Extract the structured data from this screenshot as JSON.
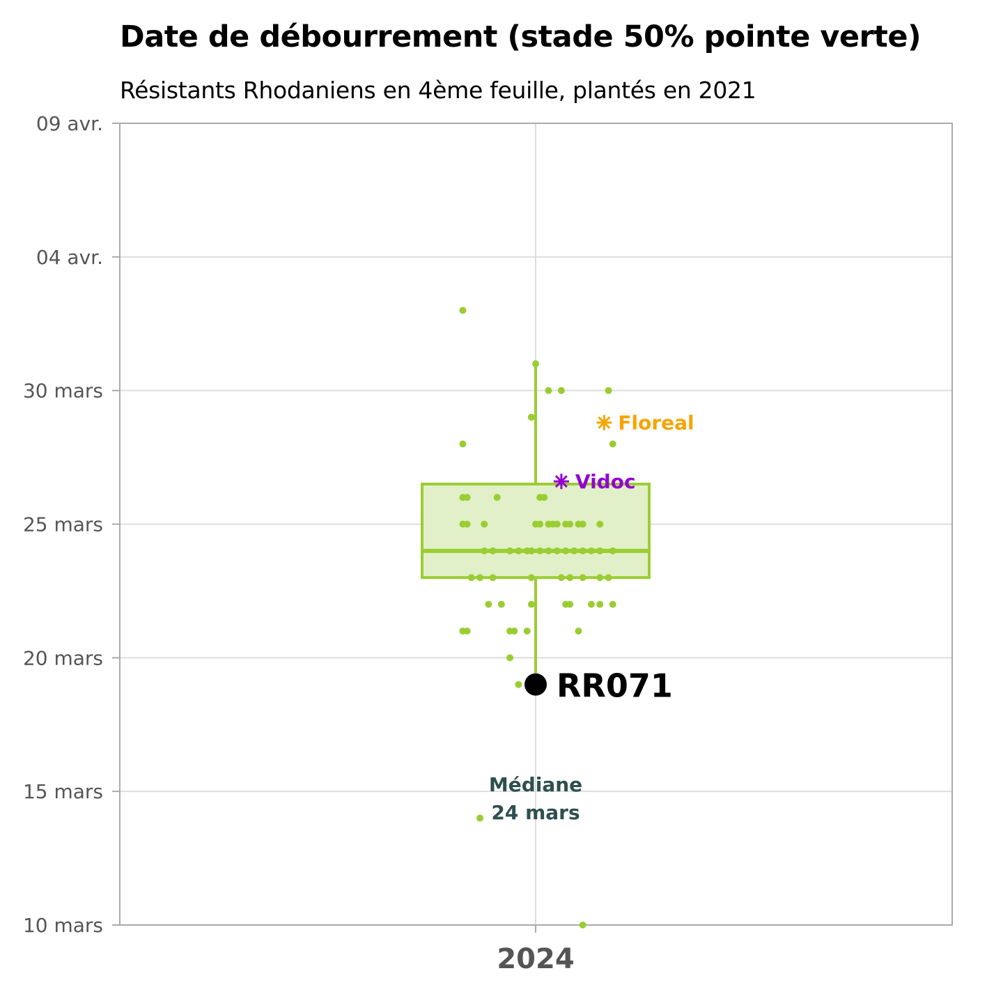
{
  "chart_data": {
    "type": "box",
    "title": "Date de débourrement (stade 50% pointe verte)",
    "subtitle": "Résistants Rhodaniens en 4ème feuille, plantés en 2021",
    "categories": [
      "2024"
    ],
    "y_axis": {
      "range_day_of_march": [
        10,
        40
      ],
      "ticks": [
        {
          "value": 10,
          "label": "10 mars"
        },
        {
          "value": 15,
          "label": "15 mars"
        },
        {
          "value": 20,
          "label": "20 mars"
        },
        {
          "value": 25,
          "label": "25 mars"
        },
        {
          "value": 30,
          "label": "30 mars"
        },
        {
          "value": 35,
          "label": "04 avr."
        },
        {
          "value": 40,
          "label": "09 avr."
        }
      ]
    },
    "grid": true,
    "box": {
      "q1": 23,
      "median": 24,
      "q3": 26.5,
      "whisker_low": 19,
      "whisker_high": 31
    },
    "points": [
      {
        "dx": -0.17,
        "y": 33
      },
      {
        "dx": 0.0,
        "y": 31
      },
      {
        "dx": 0.03,
        "y": 30
      },
      {
        "dx": 0.06,
        "y": 30
      },
      {
        "dx": 0.17,
        "y": 30
      },
      {
        "dx": -0.01,
        "y": 29
      },
      {
        "dx": -0.17,
        "y": 28
      },
      {
        "dx": 0.18,
        "y": 28
      },
      {
        "dx": -0.17,
        "y": 26
      },
      {
        "dx": -0.16,
        "y": 26
      },
      {
        "dx": -0.09,
        "y": 26
      },
      {
        "dx": 0.01,
        "y": 26
      },
      {
        "dx": 0.02,
        "y": 26
      },
      {
        "dx": -0.17,
        "y": 25
      },
      {
        "dx": -0.16,
        "y": 25
      },
      {
        "dx": -0.12,
        "y": 25
      },
      {
        "dx": 0.0,
        "y": 25
      },
      {
        "dx": 0.01,
        "y": 25
      },
      {
        "dx": 0.03,
        "y": 25
      },
      {
        "dx": 0.04,
        "y": 25
      },
      {
        "dx": 0.05,
        "y": 25
      },
      {
        "dx": 0.07,
        "y": 25
      },
      {
        "dx": 0.08,
        "y": 25
      },
      {
        "dx": 0.1,
        "y": 25
      },
      {
        "dx": 0.11,
        "y": 25
      },
      {
        "dx": 0.15,
        "y": 25
      },
      {
        "dx": -0.12,
        "y": 24
      },
      {
        "dx": -0.1,
        "y": 24
      },
      {
        "dx": -0.06,
        "y": 24
      },
      {
        "dx": -0.04,
        "y": 24
      },
      {
        "dx": -0.02,
        "y": 24
      },
      {
        "dx": -0.01,
        "y": 24
      },
      {
        "dx": 0.01,
        "y": 24
      },
      {
        "dx": 0.03,
        "y": 24
      },
      {
        "dx": 0.05,
        "y": 24
      },
      {
        "dx": 0.07,
        "y": 24
      },
      {
        "dx": 0.09,
        "y": 24
      },
      {
        "dx": 0.11,
        "y": 24
      },
      {
        "dx": 0.13,
        "y": 24
      },
      {
        "dx": 0.15,
        "y": 24
      },
      {
        "dx": 0.18,
        "y": 24
      },
      {
        "dx": -0.15,
        "y": 23
      },
      {
        "dx": -0.13,
        "y": 23
      },
      {
        "dx": -0.1,
        "y": 23
      },
      {
        "dx": -0.01,
        "y": 23
      },
      {
        "dx": 0.06,
        "y": 23
      },
      {
        "dx": 0.08,
        "y": 23
      },
      {
        "dx": 0.11,
        "y": 23
      },
      {
        "dx": 0.15,
        "y": 23
      },
      {
        "dx": 0.17,
        "y": 23
      },
      {
        "dx": -0.11,
        "y": 22
      },
      {
        "dx": -0.08,
        "y": 22
      },
      {
        "dx": -0.01,
        "y": 22
      },
      {
        "dx": 0.07,
        "y": 22
      },
      {
        "dx": 0.08,
        "y": 22
      },
      {
        "dx": 0.13,
        "y": 22
      },
      {
        "dx": 0.15,
        "y": 22
      },
      {
        "dx": 0.18,
        "y": 22
      },
      {
        "dx": -0.17,
        "y": 21
      },
      {
        "dx": -0.16,
        "y": 21
      },
      {
        "dx": -0.06,
        "y": 21
      },
      {
        "dx": -0.05,
        "y": 21
      },
      {
        "dx": -0.02,
        "y": 21
      },
      {
        "dx": 0.1,
        "y": 21
      },
      {
        "dx": -0.06,
        "y": 20
      },
      {
        "dx": -0.04,
        "y": 19
      },
      {
        "dx": -0.13,
        "y": 14
      },
      {
        "dx": 0.11,
        "y": 10
      }
    ],
    "highlight": {
      "label": "RR071",
      "y": 19
    },
    "references": [
      {
        "label": "Floreal",
        "y": 28.8,
        "dx": 0.16,
        "color": "#F7A400"
      },
      {
        "label": "Vidoc",
        "y": 26.6,
        "dx": 0.06,
        "color": "#9400D3"
      }
    ],
    "median_annotation": {
      "line1": "Médiane",
      "line2": "24 mars",
      "y": 14.8
    },
    "colors": {
      "box": "#9ACD32",
      "box_fill": "#E1F0C8",
      "grid": "#DDDDDD",
      "axis": "#AAAAAA",
      "highlight": "#000000",
      "median_text": "#2F4F4F"
    }
  }
}
